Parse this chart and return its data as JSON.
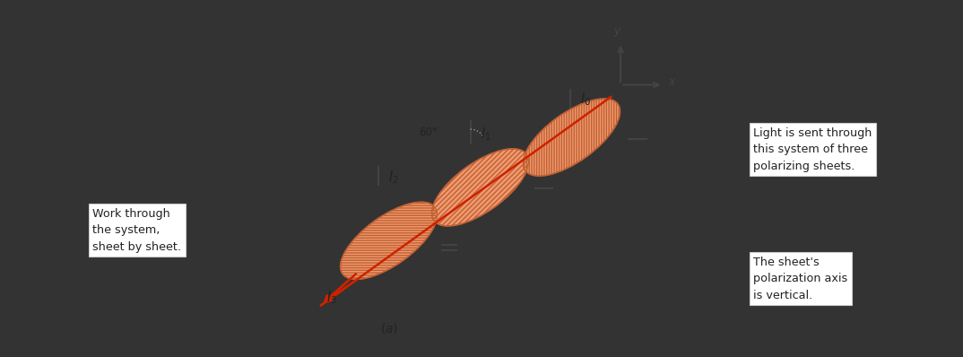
{
  "bg_outer": "#333333",
  "bg_inner": "#e8e6de",
  "fig_width": 10.74,
  "fig_height": 3.98,
  "beam_color": "#cc2200",
  "sheet_fill": "#f0956a",
  "sheet_edge": "#cc6644",
  "sheet_hatch_color": "#c86040",
  "axis_color": "#444444",
  "text_color": "#222222",
  "dash_color": "#999999",
  "text1_lines": [
    "Light is sent through",
    "this system of three",
    "polarizing sheets."
  ],
  "text2_lines": [
    "Work through",
    "the system,",
    "sheet by sheet."
  ],
  "text3_lines": [
    "The sheet's",
    "polarization axis",
    "is vertical."
  ]
}
